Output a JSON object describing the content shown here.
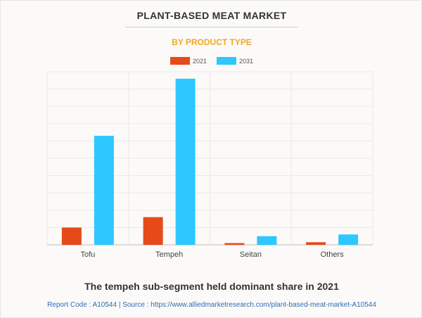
{
  "header": {
    "title": "PLANT-BASED MEAT MARKET",
    "subtitle": "BY PRODUCT TYPE"
  },
  "colors": {
    "series_2021": "#e64a19",
    "series_2031": "#2ec7ff"
  },
  "chart_data": {
    "type": "bar",
    "title": "",
    "xlabel": "",
    "ylabel": "",
    "categories": [
      "Tofu",
      "Tempeh",
      "Seitan",
      "Others"
    ],
    "series": [
      {
        "name": "2021",
        "values": [
          1.0,
          1.6,
          0.1,
          0.15
        ]
      },
      {
        "name": "2031",
        "values": [
          6.3,
          9.6,
          0.5,
          0.6
        ]
      }
    ],
    "ylim": [
      0,
      10
    ],
    "grid": true,
    "legend": "top-center"
  },
  "caption": "The tempeh sub-segment held dominant share in 2021",
  "footer": "Report Code : A10544  |  Source : https://www.alliedmarketresearch.com/plant-based-meat-market-A10544"
}
